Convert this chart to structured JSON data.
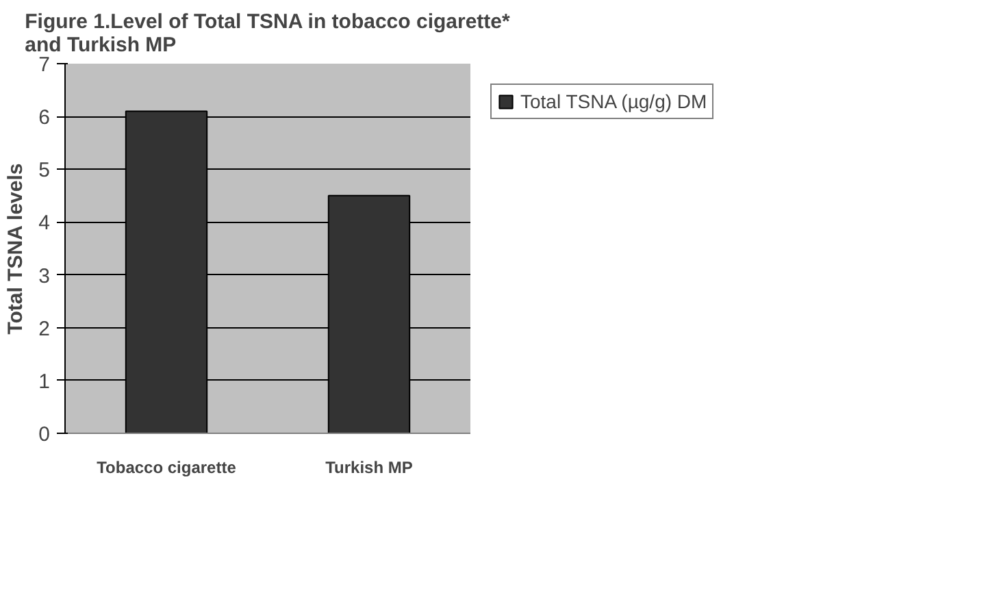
{
  "chart_data": {
    "type": "bar",
    "title": "Figure 1.Level of Total TSNA in tobacco cigarette*\nand Turkish MP",
    "ylabel": "Total TSNA levels",
    "categories": [
      "Tobacco cigarette",
      "Turkish MP"
    ],
    "series": [
      {
        "name": "Total TSNA (µg/g) DM",
        "color": "#333333",
        "values": [
          6.1,
          4.5
        ]
      }
    ],
    "ylim": [
      0,
      7
    ],
    "yticks": [
      0,
      1,
      2,
      3,
      4,
      5,
      6,
      7
    ],
    "grid": "y",
    "legend": "right"
  }
}
